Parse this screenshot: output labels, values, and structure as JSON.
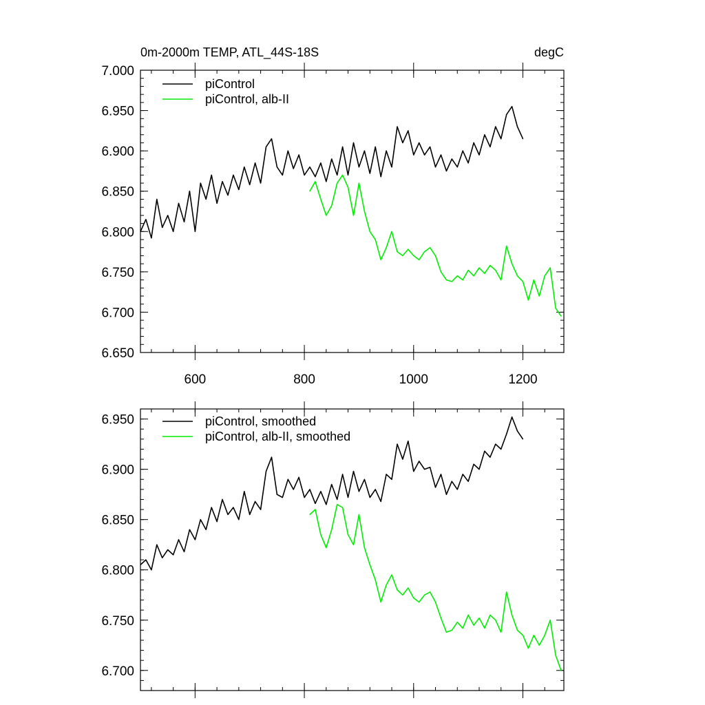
{
  "chart_data": [
    {
      "type": "line",
      "title": "0m-2000m TEMP, ATL_44S-18S",
      "units": "degC",
      "xlim": [
        500,
        1275
      ],
      "ylim": [
        6.65,
        7.0
      ],
      "xticks": [
        600,
        800,
        1000,
        1200
      ],
      "xtick_labels": [
        "600",
        "800",
        "1000",
        "1200"
      ],
      "yticks": [
        6.65,
        6.7,
        6.75,
        6.8,
        6.85,
        6.9,
        6.95,
        7.0
      ],
      "ytick_labels": [
        "6.650",
        "6.700",
        "6.750",
        "6.800",
        "6.850",
        "6.900",
        "6.950",
        "7.000"
      ],
      "legend_position": "top-left",
      "series": [
        {
          "name": "piControl",
          "color": "#000000",
          "x": [
            500,
            510,
            520,
            530,
            540,
            550,
            560,
            570,
            580,
            590,
            600,
            610,
            620,
            630,
            640,
            650,
            660,
            670,
            680,
            690,
            700,
            710,
            720,
            730,
            740,
            750,
            760,
            770,
            780,
            790,
            800,
            810,
            820,
            830,
            840,
            850,
            860,
            870,
            880,
            890,
            900,
            910,
            920,
            930,
            940,
            950,
            960,
            970,
            980,
            990,
            1000,
            1010,
            1020,
            1030,
            1040,
            1050,
            1060,
            1070,
            1080,
            1090,
            1100,
            1110,
            1120,
            1130,
            1140,
            1150,
            1160,
            1170,
            1180,
            1190,
            1200
          ],
          "y": [
            6.8,
            6.815,
            6.792,
            6.84,
            6.805,
            6.82,
            6.8,
            6.835,
            6.812,
            6.85,
            6.8,
            6.86,
            6.84,
            6.87,
            6.835,
            6.862,
            6.845,
            6.87,
            6.852,
            6.88,
            6.858,
            6.885,
            6.86,
            6.905,
            6.915,
            6.88,
            6.87,
            6.9,
            6.878,
            6.895,
            6.87,
            6.88,
            6.868,
            6.885,
            6.862,
            6.89,
            6.87,
            6.905,
            6.87,
            6.91,
            6.88,
            6.9,
            6.872,
            6.905,
            6.868,
            6.9,
            6.88,
            6.93,
            6.91,
            6.925,
            6.895,
            6.91,
            6.895,
            6.905,
            6.88,
            6.895,
            6.875,
            6.89,
            6.88,
            6.9,
            6.885,
            6.91,
            6.895,
            6.92,
            6.905,
            6.93,
            6.915,
            6.945,
            6.955,
            6.93,
            6.915
          ]
        },
        {
          "name": "piControl, alb-II",
          "color": "#00ee00",
          "x": [
            810,
            820,
            830,
            840,
            850,
            860,
            870,
            880,
            890,
            900,
            910,
            920,
            930,
            940,
            950,
            960,
            970,
            980,
            990,
            1000,
            1010,
            1020,
            1030,
            1040,
            1050,
            1060,
            1070,
            1080,
            1090,
            1100,
            1110,
            1120,
            1130,
            1140,
            1150,
            1160,
            1170,
            1180,
            1190,
            1200,
            1210,
            1220,
            1230,
            1240,
            1250,
            1260,
            1270
          ],
          "y": [
            6.85,
            6.862,
            6.84,
            6.82,
            6.832,
            6.86,
            6.87,
            6.855,
            6.82,
            6.86,
            6.825,
            6.8,
            6.79,
            6.765,
            6.78,
            6.8,
            6.775,
            6.77,
            6.778,
            6.77,
            6.765,
            6.775,
            6.78,
            6.77,
            6.75,
            6.74,
            6.738,
            6.745,
            6.74,
            6.752,
            6.745,
            6.755,
            6.748,
            6.758,
            6.752,
            6.74,
            6.782,
            6.76,
            6.745,
            6.738,
            6.715,
            6.74,
            6.72,
            6.745,
            6.755,
            6.705,
            6.695
          ]
        }
      ]
    },
    {
      "type": "line",
      "xlim": [
        500,
        1275
      ],
      "ylim": [
        6.68,
        6.96
      ],
      "xticks": [
        600,
        800,
        1000,
        1200
      ],
      "yticks": [
        6.7,
        6.75,
        6.8,
        6.85,
        6.9,
        6.95
      ],
      "ytick_labels": [
        "6.700",
        "6.750",
        "6.800",
        "6.850",
        "6.900",
        "6.950"
      ],
      "legend_position": "top-left",
      "series": [
        {
          "name": "piControl, smoothed",
          "color": "#000000",
          "x": [
            500,
            510,
            520,
            530,
            540,
            550,
            560,
            570,
            580,
            590,
            600,
            610,
            620,
            630,
            640,
            650,
            660,
            670,
            680,
            690,
            700,
            710,
            720,
            730,
            740,
            750,
            760,
            770,
            780,
            790,
            800,
            810,
            820,
            830,
            840,
            850,
            860,
            870,
            880,
            890,
            900,
            910,
            920,
            930,
            940,
            950,
            960,
            970,
            980,
            990,
            1000,
            1010,
            1020,
            1030,
            1040,
            1050,
            1060,
            1070,
            1080,
            1090,
            1100,
            1110,
            1120,
            1130,
            1140,
            1150,
            1160,
            1170,
            1180,
            1190,
            1200
          ],
          "y": [
            6.805,
            6.81,
            6.8,
            6.825,
            6.812,
            6.82,
            6.815,
            6.83,
            6.818,
            6.84,
            6.83,
            6.85,
            6.84,
            6.862,
            6.848,
            6.87,
            6.855,
            6.862,
            6.85,
            6.878,
            6.855,
            6.868,
            6.86,
            6.898,
            6.912,
            6.875,
            6.872,
            6.89,
            6.88,
            6.892,
            6.872,
            6.88,
            6.866,
            6.878,
            6.865,
            6.885,
            6.87,
            6.895,
            6.872,
            6.898,
            6.878,
            6.89,
            6.872,
            6.88,
            6.868,
            6.895,
            6.89,
            6.925,
            6.91,
            6.928,
            6.898,
            6.908,
            6.9,
            6.902,
            6.882,
            6.895,
            6.875,
            6.888,
            6.88,
            6.895,
            6.888,
            6.905,
            6.9,
            6.918,
            6.912,
            6.925,
            6.92,
            6.935,
            6.952,
            6.938,
            6.93
          ]
        },
        {
          "name": "piControl, alb-II, smoothed",
          "color": "#00ee00",
          "x": [
            810,
            820,
            830,
            840,
            850,
            860,
            870,
            880,
            890,
            900,
            910,
            920,
            930,
            940,
            950,
            960,
            970,
            980,
            990,
            1000,
            1010,
            1020,
            1030,
            1040,
            1050,
            1060,
            1070,
            1080,
            1090,
            1100,
            1110,
            1120,
            1130,
            1140,
            1150,
            1160,
            1170,
            1180,
            1190,
            1200,
            1210,
            1220,
            1230,
            1240,
            1250,
            1260,
            1270
          ],
          "y": [
            6.855,
            6.86,
            6.835,
            6.822,
            6.84,
            6.865,
            6.862,
            6.835,
            6.825,
            6.855,
            6.822,
            6.805,
            6.79,
            6.768,
            6.785,
            6.795,
            6.78,
            6.775,
            6.782,
            6.772,
            6.768,
            6.775,
            6.778,
            6.768,
            6.752,
            6.738,
            6.74,
            6.748,
            6.742,
            6.755,
            6.745,
            6.752,
            6.742,
            6.755,
            6.75,
            6.738,
            6.778,
            6.755,
            6.74,
            6.735,
            6.722,
            6.735,
            6.725,
            6.735,
            6.75,
            6.715,
            6.7
          ]
        }
      ]
    }
  ]
}
